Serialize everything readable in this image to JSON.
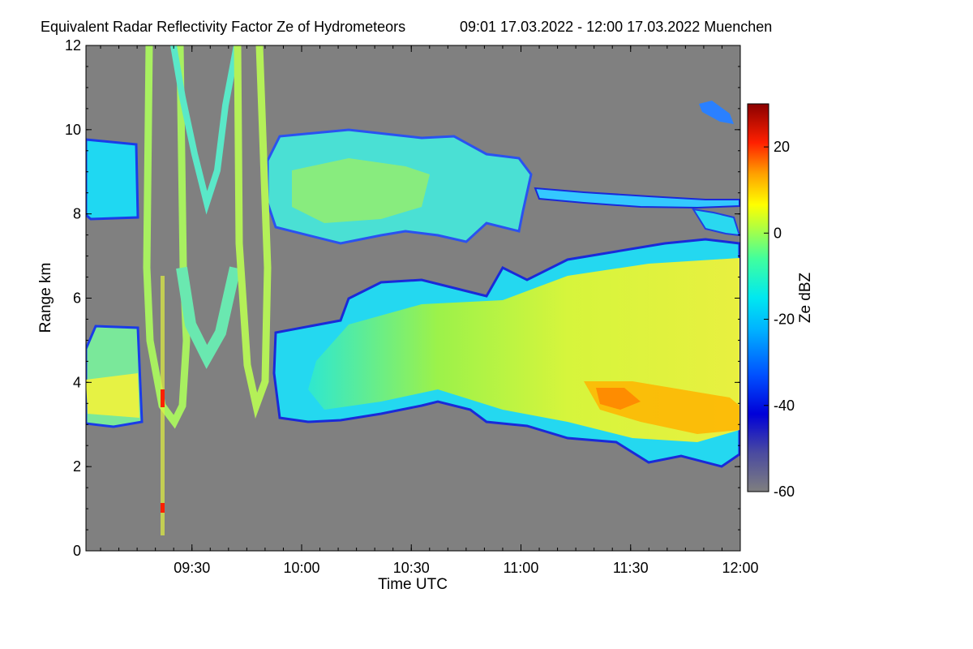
{
  "chart_data": {
    "type": "heatmap",
    "title": "Equivalent Radar Reflectivity Factor Ze of Hydrometeors",
    "subtitle": "09:01 17.03.2022 - 12:00 17.03.2022 Muenchen",
    "xlabel": "Time UTC",
    "ylabel": "Range km",
    "xlim": [
      "09:01",
      "12:00"
    ],
    "ylim": [
      0,
      12
    ],
    "x_tick_labels": [
      "09:30",
      "10:00",
      "10:30",
      "11:00",
      "11:30",
      "12:00"
    ],
    "y_tick_labels": [
      "0",
      "2",
      "4",
      "6",
      "8",
      "10",
      "12"
    ],
    "colorbar": {
      "label": "Ze dBZ",
      "range": [
        -60,
        30
      ],
      "tick_labels": [
        "20",
        "0",
        "-20",
        "-40",
        "-60"
      ],
      "colors": [
        "#7f7f7f",
        "#0000cc",
        "#0066ff",
        "#00e5ff",
        "#33ff99",
        "#ccff33",
        "#ffff00",
        "#ff9900",
        "#ff2200",
        "#990000"
      ]
    },
    "background_color": "#808080",
    "regions": [
      {
        "name": "upper cloud layer early",
        "t_start": "09:01",
        "t_end": "09:14",
        "range_km": [
          7.9,
          9.7
        ],
        "ze_dbz": -25
      },
      {
        "name": "upper cloud layer",
        "t_start": "09:45",
        "t_end": "11:00",
        "range_km": [
          7.2,
          10.0
        ],
        "ze_dbz": -18
      },
      {
        "name": "upper cloud layer thin",
        "t_start": "11:00",
        "t_end": "12:00",
        "range_km": [
          8.0,
          8.5
        ],
        "ze_dbz": -30
      },
      {
        "name": "lower cloud layer early",
        "t_start": "09:01",
        "t_end": "09:14",
        "range_km": [
          2.9,
          5.2
        ],
        "ze_dbz": -12
      },
      {
        "name": "lower cloud layer",
        "t_start": "09:55",
        "t_end": "12:00",
        "range_km": [
          2.0,
          7.2
        ],
        "ze_dbz": -10
      },
      {
        "name": "lower cloud max",
        "t_start": "11:15",
        "t_end": "11:50",
        "range_km": [
          2.8,
          4.0
        ],
        "ze_dbz": 5
      },
      {
        "name": "aircraft arc 1",
        "t_start": "09:15",
        "t_end": "09:27",
        "range_km": [
          3.0,
          12.0
        ],
        "ze_dbz": -15
      },
      {
        "name": "aircraft arc 2",
        "t_start": "09:28",
        "t_end": "09:46",
        "range_km": [
          3.0,
          12.0
        ],
        "ze_dbz": -15
      },
      {
        "name": "ground clutter spikes",
        "t_start": "09:20",
        "t_end": "09:23",
        "range_km": [
          0.3,
          6.5
        ],
        "ze_dbz": 10
      }
    ]
  }
}
